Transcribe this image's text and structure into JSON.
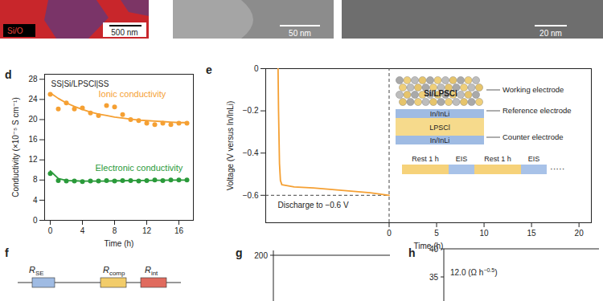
{
  "images": {
    "left": {
      "label": "Si/O",
      "scale_bar": "500 nm"
    },
    "middle": {
      "scale_bar": "50 nm"
    },
    "right": {
      "scale_bar": "20 nm"
    }
  },
  "chart_data": [
    {
      "panel": "d",
      "type": "scatter",
      "annotation": "SS|Si/LPSCl|SS",
      "x_label": "Time (h)",
      "y_label": "Conductivity (×10⁻⁵ S cm⁻¹)",
      "x": [
        0,
        1,
        2,
        3,
        4,
        5,
        6,
        7,
        8,
        9,
        10,
        11,
        12,
        13,
        14,
        15,
        16,
        17
      ],
      "marker": "circle",
      "line_style": "solid",
      "series": [
        {
          "name": "Ionic conductivity",
          "color": "#f5a033",
          "values": [
            25.0,
            22.1,
            23.3,
            22.1,
            22.3,
            21.3,
            20.8,
            22.8,
            22.5,
            21.0,
            20.0,
            19.8,
            19.3,
            19.0,
            19.3,
            19.0,
            19.3,
            19.3
          ],
          "fit": [
            25.3,
            24.2,
            23.3,
            22.6,
            22.0,
            21.5,
            21.1,
            20.8,
            20.5,
            20.3,
            20.1,
            19.9,
            19.8,
            19.7,
            19.6,
            19.5,
            19.4,
            19.4
          ]
        },
        {
          "name": "Electronic conductivity",
          "color": "#2a9a3a",
          "values": [
            9.3,
            7.9,
            7.8,
            7.8,
            7.7,
            7.8,
            7.8,
            7.9,
            7.8,
            7.9,
            7.9,
            7.8,
            7.9,
            8.0,
            7.9,
            8.0,
            8.0,
            8.0
          ],
          "fit": [
            9.8,
            8.3,
            7.9,
            7.85,
            7.8,
            7.8,
            7.8,
            7.8,
            7.85,
            7.85,
            7.9,
            7.9,
            7.9,
            7.95,
            7.95,
            8.0,
            8.0,
            8.0
          ]
        }
      ],
      "xlim": [
        -0.7,
        17.8
      ],
      "xticks": [
        0,
        4,
        8,
        12,
        16
      ],
      "ylim": [
        0,
        29
      ],
      "yticks": [
        0,
        4,
        8,
        12,
        16,
        20,
        24,
        28
      ],
      "grid": false
    },
    {
      "panel": "e",
      "type": "line",
      "x_label": "Time (h)",
      "y_label": "Voltage (V versus In/InLi)",
      "color": "#f5a033",
      "x": [
        -11.7,
        -11.65,
        -11.55,
        -11.45,
        -11.3,
        -10,
        -8,
        -6,
        -4,
        -2,
        0
      ],
      "values": [
        0,
        -0.2,
        -0.45,
        -0.53,
        -0.55,
        -0.56,
        -0.565,
        -0.573,
        -0.58,
        -0.588,
        -0.6
      ],
      "cutoff": -0.6,
      "annotation": "Discharge to −0.6 V",
      "xlim": [
        -13,
        21.3
      ],
      "xticks": [
        0,
        5,
        10,
        15,
        20
      ],
      "ylim": [
        -0.73,
        0
      ],
      "yticks": [
        0,
        {
          "value": -0.2,
          "label": "−0.2"
        },
        {
          "value": -0.4,
          "label": "−0.4"
        },
        {
          "value": -0.6,
          "label": "−0.6"
        }
      ],
      "grid": false,
      "inset": {
        "layers": [
          "Si/LPSCl",
          "In/InLi",
          "LPSCl",
          "In/InLi"
        ],
        "electrodes": [
          "Working electrode",
          "Reference electrode",
          "Counter electrode"
        ],
        "protocol": [
          "Rest 1 h",
          "EIS",
          "Rest 1 h",
          "EIS",
          "·····"
        ]
      }
    }
  ],
  "partial_panels": {
    "f": {
      "panel": "f",
      "elements": [
        {
          "base": "R",
          "sub": "SE"
        },
        {
          "base": "R",
          "sub": "comp"
        },
        {
          "base": "R",
          "sub": "int"
        }
      ]
    },
    "g": {
      "panel": "g",
      "ytick": "200"
    },
    "h": {
      "panel": "h",
      "yticks": [
        "40",
        "35"
      ],
      "annotation": {
        "text": "12.0 (Ω h",
        "sup": "−0.5",
        "end": ")"
      }
    }
  }
}
